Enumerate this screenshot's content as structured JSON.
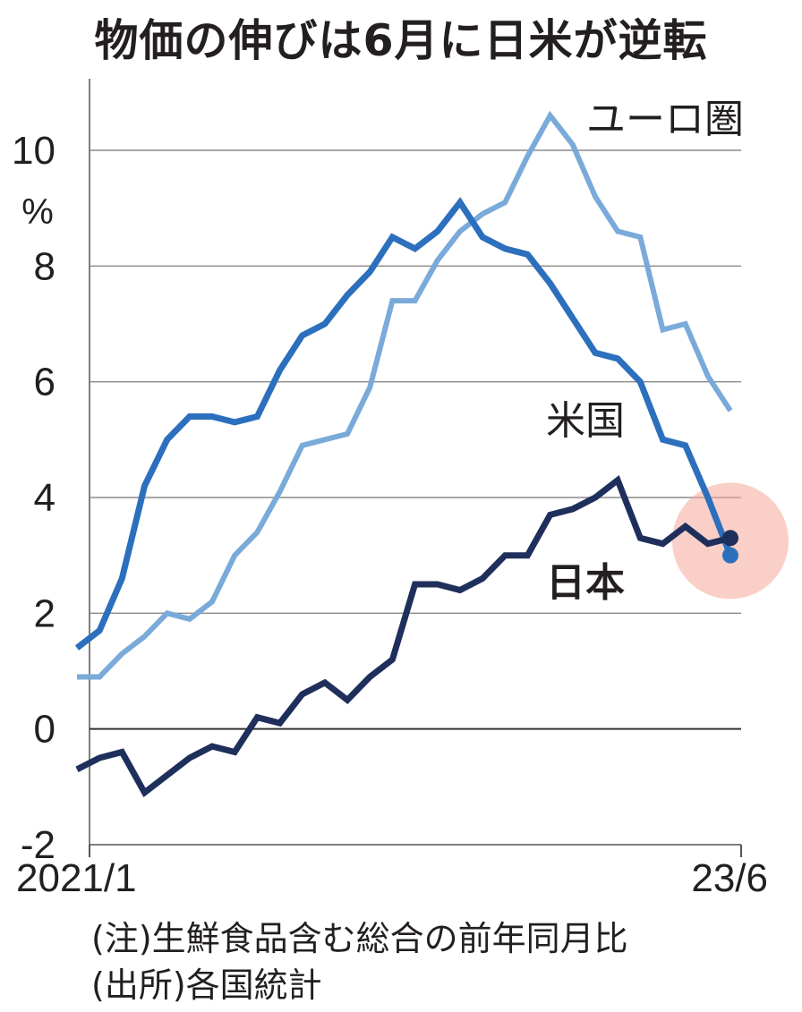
{
  "chart_data": {
    "type": "line",
    "title": "物価の伸びは6月に日米が逆転",
    "unit_label": "%",
    "ylim": [
      -2,
      10
    ],
    "y_ticks": [
      10,
      8,
      6,
      4,
      2,
      0,
      -2
    ],
    "y_tick_labels": [
      "10",
      "8",
      "6",
      "4",
      "2",
      "0",
      "-2"
    ],
    "x_tick_labels": [
      "2021/1",
      "23/6"
    ],
    "x_range": [
      "2021/1",
      "2023/6"
    ],
    "grid": true,
    "highlight": {
      "x": "2023/6",
      "color": "#f4a89a"
    },
    "x": [
      "2021/1",
      "2021/2",
      "2021/3",
      "2021/4",
      "2021/5",
      "2021/6",
      "2021/7",
      "2021/8",
      "2021/9",
      "2021/10",
      "2021/11",
      "2021/12",
      "2022/1",
      "2022/2",
      "2022/3",
      "2022/4",
      "2022/5",
      "2022/6",
      "2022/7",
      "2022/8",
      "2022/9",
      "2022/10",
      "2022/11",
      "2022/12",
      "2023/1",
      "2023/2",
      "2023/3",
      "2023/4",
      "2023/5",
      "2023/6"
    ],
    "series": [
      {
        "name": "ユーロ圏",
        "color": "#7aaad9",
        "values": [
          0.9,
          0.9,
          1.3,
          1.6,
          2.0,
          1.9,
          2.2,
          3.0,
          3.4,
          4.1,
          4.9,
          5.0,
          5.1,
          5.9,
          7.4,
          7.4,
          8.1,
          8.6,
          8.9,
          9.1,
          9.9,
          10.6,
          10.1,
          9.2,
          8.6,
          8.5,
          6.9,
          7.0,
          6.1,
          5.5
        ]
      },
      {
        "name": "米国",
        "color": "#2c6fbd",
        "values": [
          1.4,
          1.7,
          2.6,
          4.2,
          5.0,
          5.4,
          5.4,
          5.3,
          5.4,
          6.2,
          6.8,
          7.0,
          7.5,
          7.9,
          8.5,
          8.3,
          8.6,
          9.1,
          8.5,
          8.3,
          8.2,
          7.7,
          7.1,
          6.5,
          6.4,
          6.0,
          5.0,
          4.9,
          4.0,
          3.0
        ]
      },
      {
        "name": "日本",
        "color": "#1f2f5b",
        "values": [
          -0.7,
          -0.5,
          -0.4,
          -1.1,
          -0.8,
          -0.5,
          -0.3,
          -0.4,
          0.2,
          0.1,
          0.6,
          0.8,
          0.5,
          0.9,
          1.2,
          2.5,
          2.5,
          2.4,
          2.6,
          3.0,
          3.0,
          3.7,
          3.8,
          4.0,
          4.3,
          3.3,
          3.2,
          3.5,
          3.2,
          3.3
        ]
      }
    ]
  },
  "notes": {
    "line1": "(注)生鮮食品含む総合の前年同月比",
    "line2": "(出所)各国統計"
  }
}
